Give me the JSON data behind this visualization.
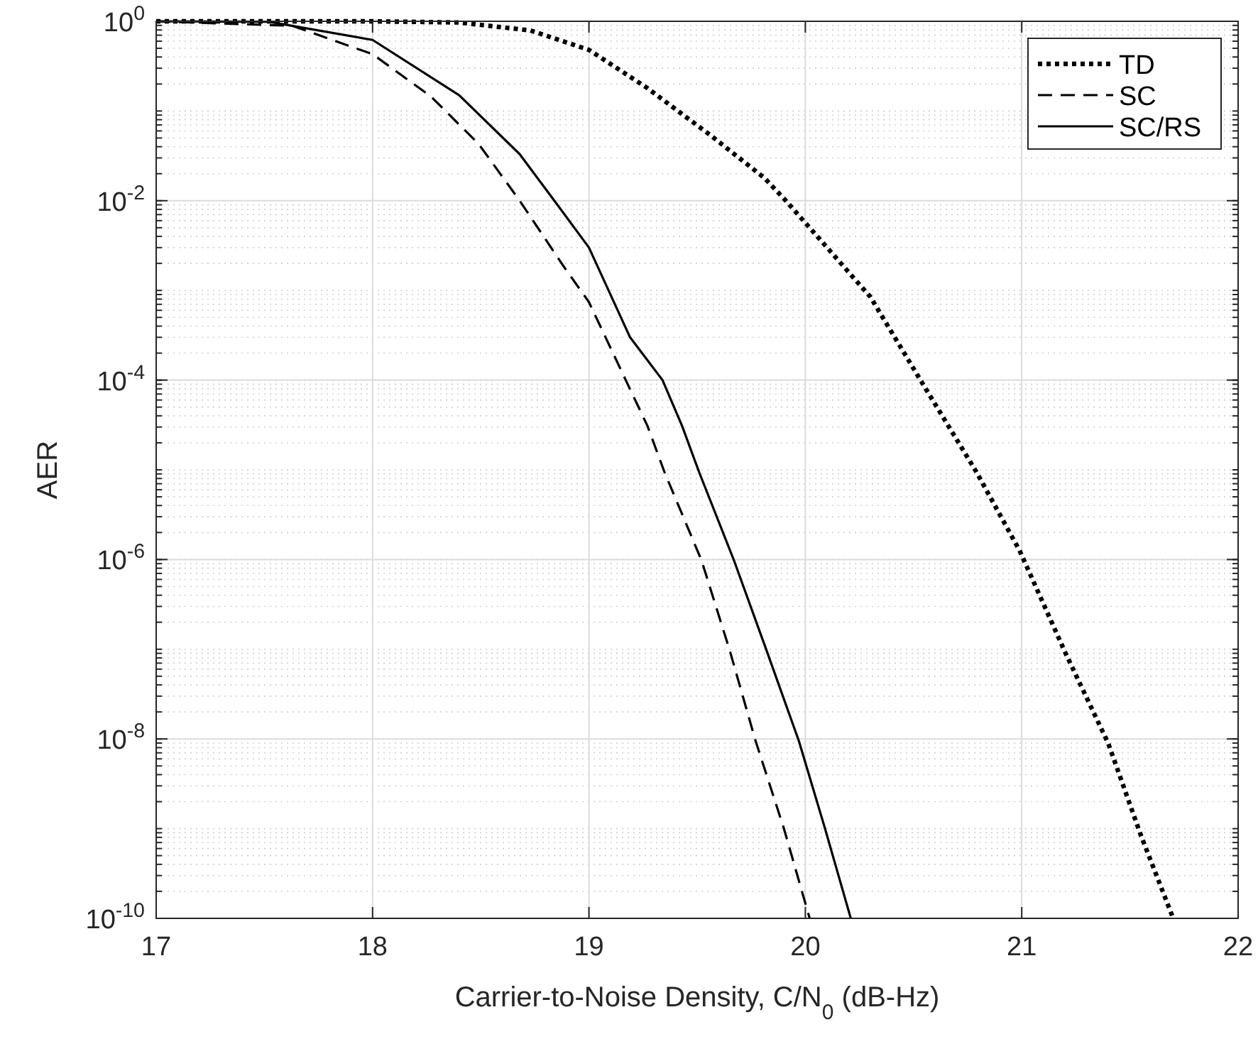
{
  "chart_data": {
    "type": "line",
    "xlabel": "Carrier-to-Noise Density, C/N$_{0}$ (dB-Hz)",
    "ylabel": "AER",
    "log": "y",
    "grid": true,
    "legend": "top right",
    "xlim": [
      17,
      22
    ],
    "xticks": [
      17,
      18,
      19,
      20,
      21,
      22
    ],
    "ylim": [
      1e-10,
      1
    ],
    "yticks": [
      {
        "value": 1e-10,
        "label": "10$^{-10}$"
      },
      {
        "value": 1e-08,
        "label": "10$^{-8}$"
      },
      {
        "value": 1e-06,
        "label": "10$^{-6}$"
      },
      {
        "value": 0.0001,
        "label": "10$^{-4}$"
      },
      {
        "value": 0.01,
        "label": "10$^{-2}$"
      },
      {
        "value": 1,
        "label": "10$^{0}$"
      }
    ],
    "series": [
      {
        "name": "TD",
        "color": "#000000",
        "line_style": "dotted",
        "x": [
          17,
          18,
          18.4,
          18.73,
          19,
          19.27,
          19.56,
          19.81,
          19.91,
          20.3,
          20.54,
          20.79,
          20.99,
          21.2,
          21.4,
          21.55,
          21.7
        ],
        "values": [
          1,
          1,
          0.97,
          0.79,
          0.48,
          0.18,
          0.054,
          0.018,
          0.01,
          0.00085,
          9.3e-05,
          9.5e-06,
          1.26e-06,
          9.3e-08,
          8.9e-09,
          8.5e-10,
          1e-10
        ]
      },
      {
        "name": "SC",
        "color": "#000000",
        "line_style": "dashed",
        "x": [
          17,
          17.63,
          18,
          18.27,
          18.49,
          18.68,
          18.88,
          19,
          19.17,
          19.27,
          19.35,
          19.52,
          19.65,
          19.77,
          19.9,
          20.02
        ],
        "values": [
          1,
          0.89,
          0.43,
          0.145,
          0.043,
          0.01,
          0.0019,
          0.00074,
          0.0001,
          3.1e-05,
          9.3e-06,
          9.8e-07,
          9.8e-08,
          9.5e-09,
          1.02e-09,
          1e-10
        ]
      },
      {
        "name": "SC/RS",
        "color": "#000000",
        "line_style": "solid",
        "x": [
          17,
          17.52,
          18,
          18.4,
          18.68,
          18.84,
          19,
          19.19,
          19.34,
          19.43,
          19.51,
          19.67,
          19.82,
          19.97,
          20.09,
          20.21
        ],
        "values": [
          1,
          0.99,
          0.62,
          0.15,
          0.033,
          0.01,
          0.003,
          0.0003,
          0.0001,
          3.1e-05,
          9.3e-06,
          9.8e-07,
          9.8e-08,
          9.5e-09,
          1.02e-09,
          1e-10
        ]
      }
    ]
  }
}
